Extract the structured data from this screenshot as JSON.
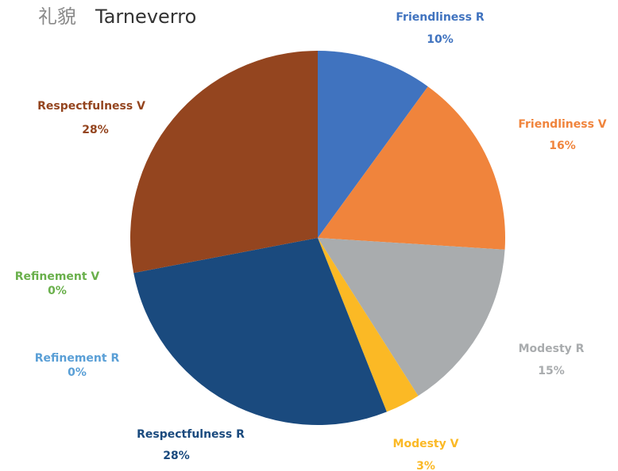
{
  "chart_data": {
    "type": "pie",
    "title": "礼貌",
    "subtitle": "Tarneverro",
    "categories": [
      "Friendliness R",
      "Friendliness V",
      "Modesty R",
      "Modesty V",
      "Respectfulness R",
      "Refinement R",
      "Refinement V",
      "Respectfulness V"
    ],
    "values": [
      10,
      16,
      15,
      3,
      28,
      0,
      0,
      28
    ],
    "value_labels": [
      "10%",
      "16%",
      "15%",
      "3%",
      "28%",
      "0%",
      "0%",
      "28%"
    ],
    "colors": [
      "#4073bf",
      "#f0843c",
      "#a9acae",
      "#fbb925",
      "#1a4a7e",
      "#5a9fd6",
      "#6ab04c",
      "#94451f"
    ]
  }
}
